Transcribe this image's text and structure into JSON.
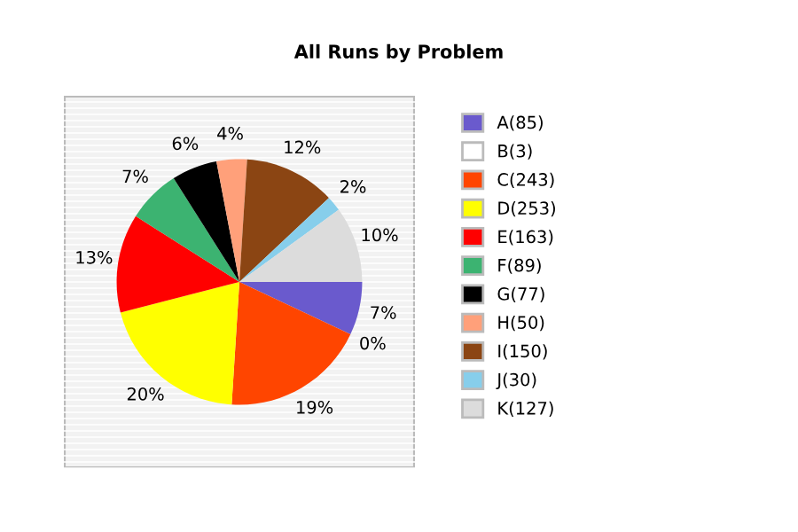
{
  "chart_data": {
    "type": "pie",
    "title": "All Runs by Problem",
    "categories": [
      "A(85)",
      "B(3)",
      "C(243)",
      "D(253)",
      "E(163)",
      "F(89)",
      "G(77)",
      "H(50)",
      "I(150)",
      "J(30)",
      "K(127)"
    ],
    "values": [
      7,
      0,
      19,
      20,
      13,
      7,
      6,
      4,
      12,
      2,
      10
    ],
    "value_labels": [
      "7%",
      "0%",
      "19%",
      "20%",
      "13%",
      "7%",
      "6%",
      "4%",
      "12%",
      "2%",
      "10%"
    ],
    "colors": [
      "#6a5acd",
      "#ffffff",
      "#ff4500",
      "#ffff00",
      "#ff0000",
      "#3cb371",
      "#000000",
      "#ffa07a",
      "#8b4513",
      "#87ceeb",
      "#dcdcdc"
    ],
    "legend": "right"
  }
}
